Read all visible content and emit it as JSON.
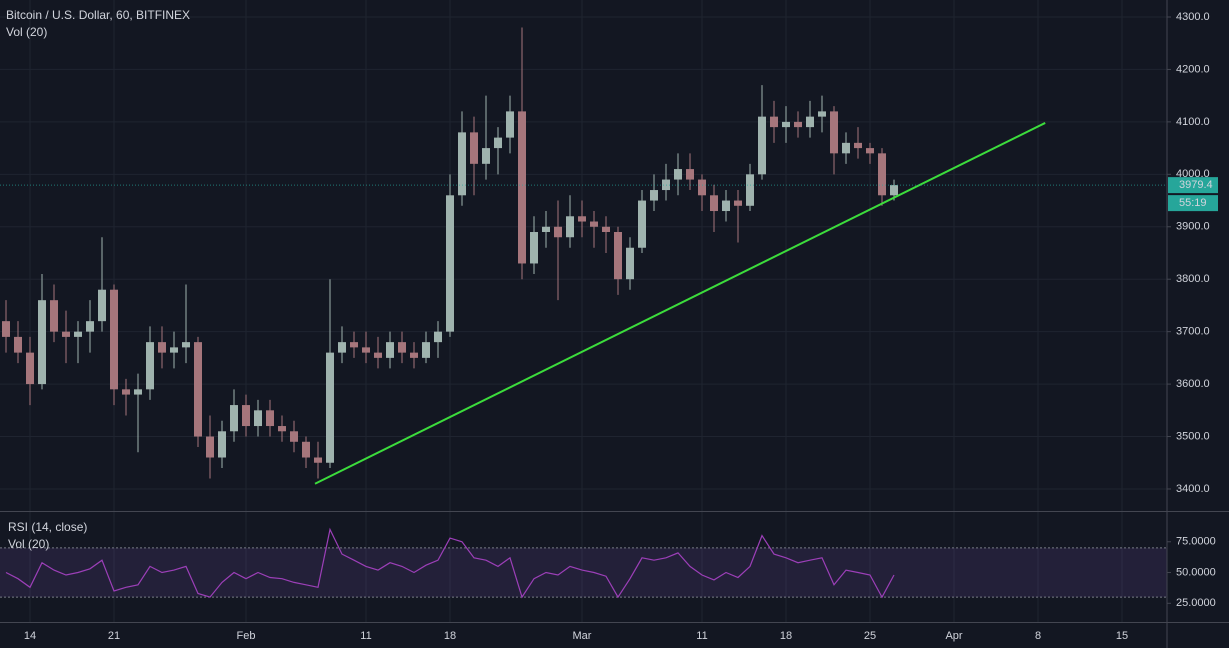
{
  "chart_data": [
    {
      "type": "candlestick",
      "title": "Bitcoin / U.S. Dollar, 60, BITFINEX",
      "subtitle": "Vol (20)",
      "x": [
        12,
        13,
        14,
        15,
        16,
        17,
        18,
        19,
        20,
        21,
        22,
        23,
        24,
        25,
        26,
        27,
        28,
        29,
        30,
        31,
        32,
        33,
        34,
        35,
        36,
        37,
        38,
        39,
        40,
        41,
        42,
        43,
        44,
        45,
        46,
        47,
        48,
        49,
        50,
        51,
        52,
        53,
        54,
        55,
        56,
        57,
        58,
        59,
        60,
        61,
        62,
        63,
        64,
        65,
        66,
        67,
        68,
        69,
        70,
        71,
        72,
        73,
        74,
        75,
        76,
        77,
        78,
        79,
        80,
        81,
        82,
        83,
        84,
        85,
        86
      ],
      "open": [
        3720,
        3690,
        3660,
        3600,
        3760,
        3700,
        3690,
        3700,
        3720,
        3780,
        3590,
        3580,
        3590,
        3680,
        3660,
        3670,
        3680,
        3500,
        3460,
        3510,
        3560,
        3520,
        3550,
        3520,
        3510,
        3490,
        3460,
        3450,
        3660,
        3680,
        3670,
        3660,
        3650,
        3680,
        3660,
        3650,
        3680,
        3700,
        3960,
        4080,
        4020,
        4050,
        4070,
        4120,
        3830,
        3890,
        3900,
        3880,
        3920,
        3910,
        3900,
        3890,
        3800,
        3860,
        3950,
        3970,
        3990,
        4010,
        3990,
        3960,
        3930,
        3950,
        3940,
        4000,
        4110,
        4090,
        4100,
        4090,
        4110,
        4120,
        4040,
        4060,
        4050,
        4040,
        3960
      ],
      "high": [
        3760,
        3720,
        3690,
        3810,
        3790,
        3740,
        3720,
        3760,
        3880,
        3790,
        3610,
        3620,
        3710,
        3710,
        3700,
        3790,
        3690,
        3540,
        3530,
        3590,
        3580,
        3570,
        3570,
        3540,
        3530,
        3500,
        3490,
        3800,
        3710,
        3700,
        3700,
        3690,
        3700,
        3700,
        3680,
        3700,
        3720,
        4000,
        4120,
        4110,
        4150,
        4090,
        4150,
        4280,
        3920,
        3930,
        3950,
        3960,
        3950,
        3930,
        3920,
        3900,
        3880,
        3970,
        4000,
        4020,
        4040,
        4040,
        4000,
        3980,
        3970,
        3970,
        4020,
        4170,
        4140,
        4130,
        4120,
        4140,
        4150,
        4130,
        4080,
        4090,
        4060,
        4050,
        3990
      ],
      "low": [
        3660,
        3640,
        3560,
        3590,
        3680,
        3640,
        3640,
        3660,
        3700,
        3560,
        3540,
        3470,
        3570,
        3630,
        3630,
        3640,
        3480,
        3420,
        3440,
        3490,
        3500,
        3500,
        3500,
        3490,
        3470,
        3440,
        3420,
        3440,
        3640,
        3650,
        3640,
        3630,
        3630,
        3640,
        3630,
        3640,
        3650,
        3690,
        3940,
        3960,
        3990,
        4000,
        4040,
        3800,
        3810,
        3860,
        3760,
        3860,
        3880,
        3860,
        3850,
        3770,
        3780,
        3850,
        3930,
        3950,
        3960,
        3970,
        3930,
        3890,
        3910,
        3870,
        3930,
        3990,
        4060,
        4060,
        4070,
        4070,
        4080,
        4000,
        4020,
        4030,
        4020,
        3940,
        3950
      ],
      "close": [
        3690,
        3660,
        3600,
        3760,
        3700,
        3690,
        3700,
        3720,
        3780,
        3590,
        3580,
        3590,
        3680,
        3660,
        3670,
        3680,
        3500,
        3460,
        3510,
        3560,
        3520,
        3550,
        3520,
        3510,
        3490,
        3460,
        3450,
        3660,
        3680,
        3670,
        3660,
        3650,
        3680,
        3660,
        3650,
        3680,
        3700,
        3960,
        4080,
        4020,
        4050,
        4070,
        4120,
        3830,
        3890,
        3900,
        3880,
        3920,
        3910,
        3900,
        3890,
        3800,
        3860,
        3950,
        3970,
        3990,
        4010,
        3990,
        3960,
        3930,
        3950,
        3940,
        4000,
        4110,
        4090,
        4100,
        4090,
        4110,
        4120,
        4040,
        4060,
        4050,
        4040,
        3960,
        3979.4
      ],
      "up_color": "#9fb3ae",
      "down_color": "#a6767c",
      "xlim": [
        11.5,
        108.75
      ],
      "xticks": [
        {
          "value": 14,
          "label": "14"
        },
        {
          "value": 21,
          "label": "21"
        },
        {
          "value": 32,
          "label": "Feb"
        },
        {
          "value": 42,
          "label": "11"
        },
        {
          "value": 49,
          "label": "18"
        },
        {
          "value": 60,
          "label": "Mar"
        },
        {
          "value": 70,
          "label": "11"
        },
        {
          "value": 77,
          "label": "18"
        },
        {
          "value": 84,
          "label": "25"
        },
        {
          "value": 91,
          "label": "Apr"
        },
        {
          "value": 98,
          "label": "8"
        },
        {
          "value": 105,
          "label": "15"
        }
      ],
      "ylim": [
        3358,
        4332.4
      ],
      "yticks": [
        {
          "value": 3400,
          "label": "3400.0"
        },
        {
          "value": 3500,
          "label": "3500.0"
        },
        {
          "value": 3600,
          "label": "3600.0"
        },
        {
          "value": 3700,
          "label": "3700.0"
        },
        {
          "value": 3800,
          "label": "3800.0"
        },
        {
          "value": 3900,
          "label": "3900.0"
        },
        {
          "value": 4000,
          "label": "4000.0"
        },
        {
          "value": 4100,
          "label": "4100.0"
        },
        {
          "value": 4200,
          "label": "4200.0"
        },
        {
          "value": 4300,
          "label": "4300.0"
        }
      ],
      "grid": true,
      "trendline": {
        "x": [
          37.75,
          98.6
        ],
        "y": [
          3410,
          4098
        ],
        "color": "#3cdc3c"
      },
      "countdown": "55:19",
      "price_color": "#26a69a"
    },
    {
      "type": "line",
      "title": "RSI (14, close)",
      "subtitle": "Vol (20)",
      "values": [
        50,
        45,
        38,
        58,
        52,
        48,
        50,
        53,
        60,
        35,
        38,
        40,
        55,
        50,
        52,
        55,
        33,
        30,
        42,
        50,
        45,
        50,
        46,
        45,
        42,
        40,
        38,
        85,
        65,
        60,
        55,
        52,
        58,
        55,
        50,
        56,
        60,
        78,
        75,
        62,
        60,
        55,
        62,
        30,
        45,
        50,
        48,
        55,
        52,
        50,
        47,
        30,
        45,
        62,
        60,
        62,
        66,
        55,
        48,
        44,
        50,
        46,
        55,
        80,
        65,
        62,
        58,
        60,
        62,
        40,
        52,
        50,
        48,
        30,
        48
      ],
      "color": "#9c3fb8",
      "ylim": [
        9.8,
        99.2
      ],
      "levels": [
        30,
        70
      ],
      "yticks": [
        {
          "value": 25,
          "label": "25.0000"
        },
        {
          "value": 50,
          "label": "50.0000"
        },
        {
          "value": 75,
          "label": "75.0000"
        }
      ]
    }
  ]
}
